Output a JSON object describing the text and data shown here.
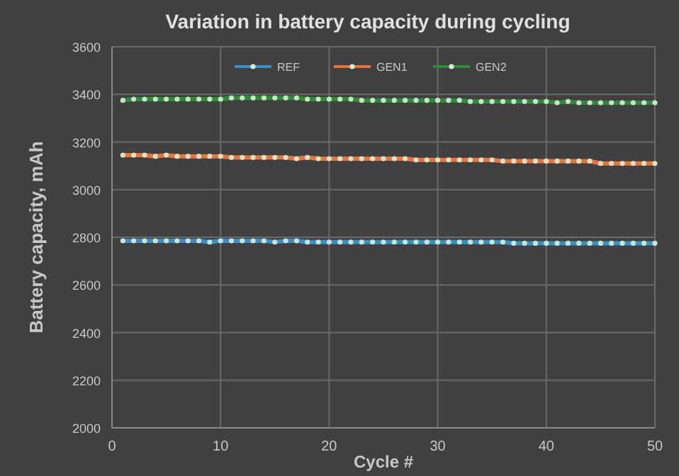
{
  "chart_data": {
    "type": "line",
    "title": "Variation in battery capacity during cycling",
    "xlabel": "Cycle #",
    "ylabel": "Battery capacity, mAh",
    "x": [
      1,
      2,
      3,
      4,
      5,
      6,
      7,
      8,
      9,
      10,
      11,
      12,
      13,
      14,
      15,
      16,
      17,
      18,
      19,
      20,
      21,
      22,
      23,
      24,
      25,
      26,
      27,
      28,
      29,
      30,
      31,
      32,
      33,
      34,
      35,
      36,
      37,
      38,
      39,
      40,
      41,
      42,
      43,
      44,
      45,
      46,
      47,
      48,
      49,
      50
    ],
    "series": [
      {
        "name": "REF",
        "color": "#3a8fc4",
        "values": [
          2785,
          2785,
          2785,
          2785,
          2785,
          2785,
          2785,
          2785,
          2780,
          2785,
          2785,
          2785,
          2785,
          2785,
          2780,
          2785,
          2785,
          2780,
          2780,
          2780,
          2780,
          2780,
          2780,
          2780,
          2780,
          2780,
          2780,
          2780,
          2780,
          2780,
          2780,
          2780,
          2780,
          2780,
          2780,
          2780,
          2775,
          2775,
          2775,
          2775,
          2775,
          2775,
          2775,
          2775,
          2775,
          2775,
          2775,
          2775,
          2775,
          2775
        ]
      },
      {
        "name": "GEN1",
        "color": "#e8743b",
        "values": [
          3145,
          3145,
          3145,
          3140,
          3145,
          3140,
          3140,
          3140,
          3140,
          3140,
          3135,
          3135,
          3135,
          3135,
          3135,
          3135,
          3130,
          3135,
          3130,
          3130,
          3130,
          3130,
          3130,
          3130,
          3130,
          3130,
          3130,
          3125,
          3125,
          3125,
          3125,
          3125,
          3125,
          3125,
          3125,
          3120,
          3120,
          3120,
          3120,
          3120,
          3120,
          3120,
          3120,
          3120,
          3110,
          3110,
          3110,
          3110,
          3110,
          3110
        ]
      },
      {
        "name": "GEN2",
        "color": "#2e8b3a",
        "values": [
          3375,
          3380,
          3380,
          3380,
          3380,
          3380,
          3380,
          3380,
          3380,
          3380,
          3385,
          3385,
          3385,
          3385,
          3385,
          3385,
          3385,
          3380,
          3380,
          3380,
          3380,
          3380,
          3375,
          3375,
          3375,
          3375,
          3375,
          3375,
          3375,
          3375,
          3375,
          3375,
          3370,
          3370,
          3370,
          3370,
          3370,
          3370,
          3370,
          3370,
          3365,
          3370,
          3365,
          3365,
          3365,
          3365,
          3365,
          3365,
          3365,
          3365
        ]
      }
    ],
    "xlim": [
      0,
      50
    ],
    "xticks": [
      0,
      10,
      20,
      30,
      40,
      50
    ],
    "ylim": [
      2000,
      3600
    ],
    "yticks": [
      2000,
      2200,
      2400,
      2600,
      2800,
      3000,
      3200,
      3400,
      3600
    ],
    "grid": true,
    "legend": "top",
    "marker": "circle",
    "line_style": "solid"
  }
}
